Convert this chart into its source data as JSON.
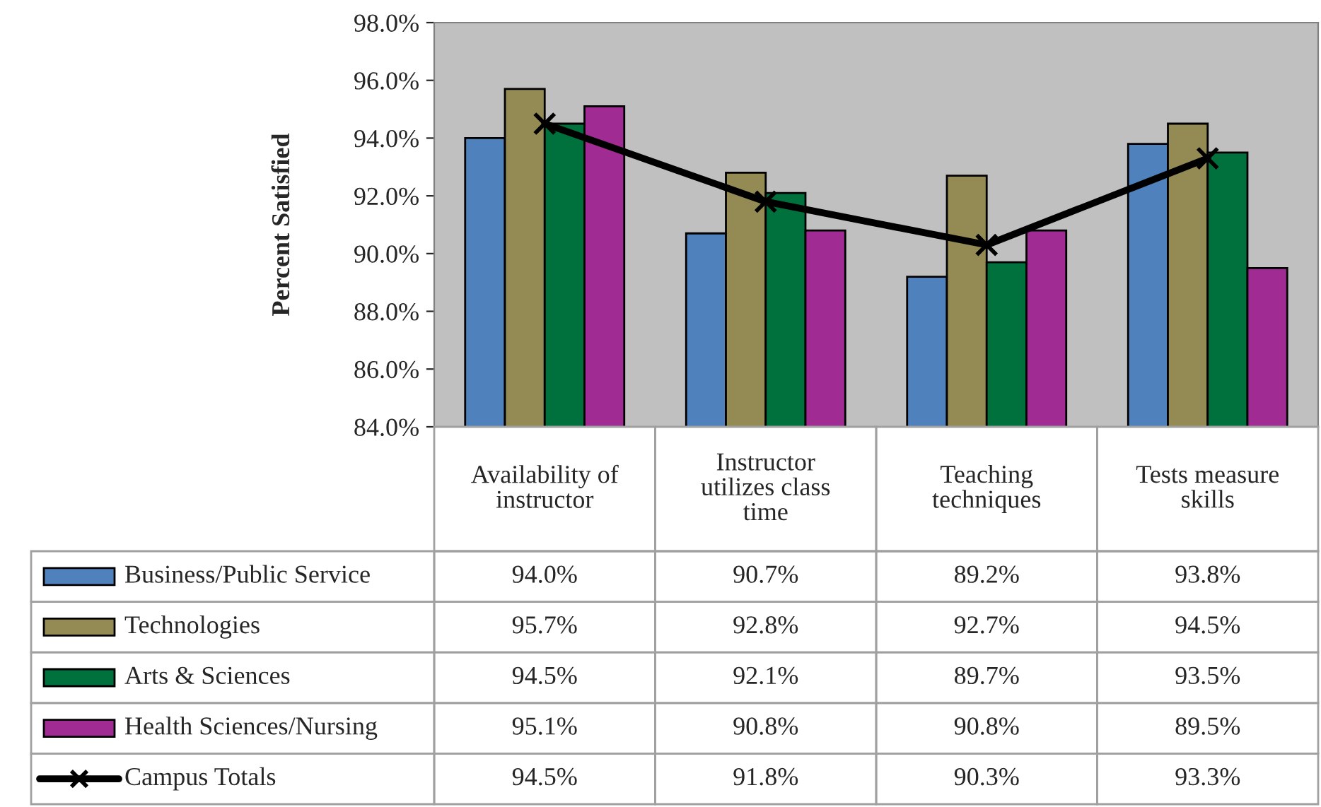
{
  "chart_data": {
    "type": "bar",
    "ylabel": "Percent Satisfied",
    "categories": [
      "Availability of\ninstructor",
      "Instructor\nutilizes class\ntime",
      "Teaching\ntechniques",
      "Tests measure\nskills"
    ],
    "series": [
      {
        "name": "Business/Public Service",
        "color": "#4f81bd",
        "values": [
          94.0,
          90.7,
          89.2,
          93.8
        ],
        "value_labels": [
          "94.0%",
          "90.7%",
          "89.2%",
          "93.8%"
        ]
      },
      {
        "name": "Technologies",
        "color": "#948a54",
        "values": [
          95.7,
          92.8,
          92.7,
          94.5
        ],
        "value_labels": [
          "95.7%",
          "92.8%",
          "92.7%",
          "94.5%"
        ]
      },
      {
        "name": "Arts & Sciences",
        "color": "#00703c",
        "values": [
          94.5,
          92.1,
          89.7,
          93.5
        ],
        "value_labels": [
          "94.5%",
          "92.1%",
          "89.7%",
          "93.5%"
        ]
      },
      {
        "name": "Health Sciences/Nursing",
        "color": "#a02b93",
        "values": [
          95.1,
          90.8,
          90.8,
          89.5
        ],
        "value_labels": [
          "95.1%",
          "90.8%",
          "90.8%",
          "89.5%"
        ]
      },
      {
        "name": "Campus Totals",
        "type": "line",
        "color": "#000000",
        "marker": "cross",
        "values": [
          94.5,
          91.8,
          90.3,
          93.3
        ],
        "value_labels": [
          "94.5%",
          "91.8%",
          "90.3%",
          "93.3%"
        ]
      }
    ],
    "ylim": [
      84,
      98
    ],
    "yticks": [
      {
        "value": 84,
        "label": "84.0%"
      },
      {
        "value": 86,
        "label": "86.0%"
      },
      {
        "value": 88,
        "label": "88.0%"
      },
      {
        "value": 90,
        "label": "90.0%"
      },
      {
        "value": 92,
        "label": "92.0%"
      },
      {
        "value": 94,
        "label": "94.0%"
      },
      {
        "value": 96,
        "label": "96.0%"
      },
      {
        "value": 98,
        "label": "98.0%"
      }
    ],
    "grid": false,
    "legend": "bottom left"
  }
}
